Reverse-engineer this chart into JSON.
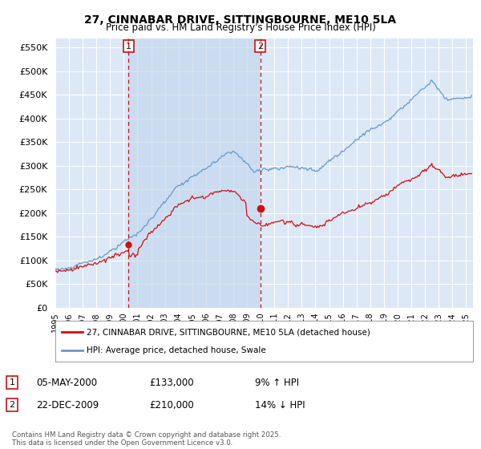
{
  "title": "27, CINNABAR DRIVE, SITTINGBOURNE, ME10 5LA",
  "subtitle": "Price paid vs. HM Land Registry's House Price Index (HPI)",
  "property_label": "27, CINNABAR DRIVE, SITTINGBOURNE, ME10 5LA (detached house)",
  "hpi_label": "HPI: Average price, detached house, Swale",
  "annotation1": {
    "num": "1",
    "date": "05-MAY-2000",
    "price": "£133,000",
    "pct": "9% ↑ HPI"
  },
  "annotation2": {
    "num": "2",
    "date": "22-DEC-2009",
    "price": "£210,000",
    "pct": "14% ↓ HPI"
  },
  "vline1_year": 2000.35,
  "vline2_year": 2009.97,
  "purchase1_value": 133000,
  "purchase2_value": 210000,
  "ylim": [
    0,
    570000
  ],
  "yticks": [
    0,
    50000,
    100000,
    150000,
    200000,
    250000,
    300000,
    350000,
    400000,
    450000,
    500000,
    550000
  ],
  "xlim_left": 1995.0,
  "xlim_right": 2025.5,
  "plot_bg": "#dce8f5",
  "shade_color": "#c5d8ee",
  "grid_color": "#ffffff",
  "property_color": "#cc1111",
  "hpi_color": "#6699cc",
  "vline_color": "#cc1111",
  "footer": "Contains HM Land Registry data © Crown copyright and database right 2025.\nThis data is licensed under the Open Government Licence v3.0."
}
